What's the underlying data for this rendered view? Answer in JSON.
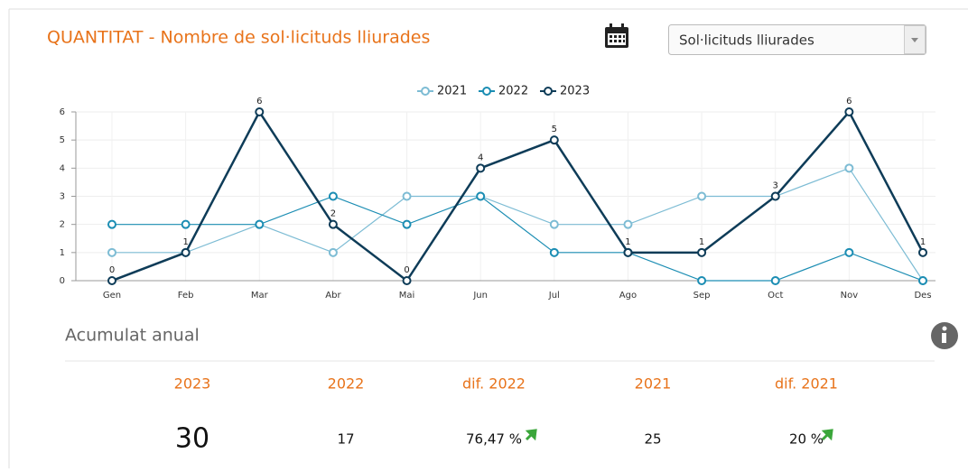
{
  "chart_data": {
    "type": "line",
    "title": "QUANTITAT - Nombre de sol·licituds lliurades",
    "categories": [
      "Gen",
      "Feb",
      "Mar",
      "Abr",
      "Mai",
      "Jun",
      "Jul",
      "Ago",
      "Sep",
      "Oct",
      "Nov",
      "Des"
    ],
    "series": [
      {
        "name": "2021",
        "color": "#7dbcd4",
        "values": [
          1,
          1,
          2,
          1,
          3,
          3,
          2,
          2,
          3,
          3,
          4,
          0
        ]
      },
      {
        "name": "2022",
        "color": "#1b8db3",
        "values": [
          2,
          2,
          2,
          3,
          2,
          3,
          1,
          1,
          0,
          0,
          1,
          0
        ]
      },
      {
        "name": "2023",
        "color": "#0e3c58",
        "values": [
          0,
          1,
          6,
          2,
          0,
          4,
          5,
          1,
          1,
          3,
          6,
          1
        ],
        "data_labels": true
      }
    ],
    "ylim": [
      0,
      6
    ],
    "yticks": [
      0,
      1,
      2,
      3,
      4,
      5,
      6
    ],
    "grid": true,
    "legend": "top"
  },
  "select": "Sol·licituds lliurades",
  "summary": {
    "title": "Acumulat anual",
    "headers": [
      "2023",
      "2022",
      "dif. 2022",
      "2021",
      "dif. 2021"
    ],
    "values": [
      30,
      17,
      "76,47 %",
      25,
      "20 %"
    ]
  }
}
